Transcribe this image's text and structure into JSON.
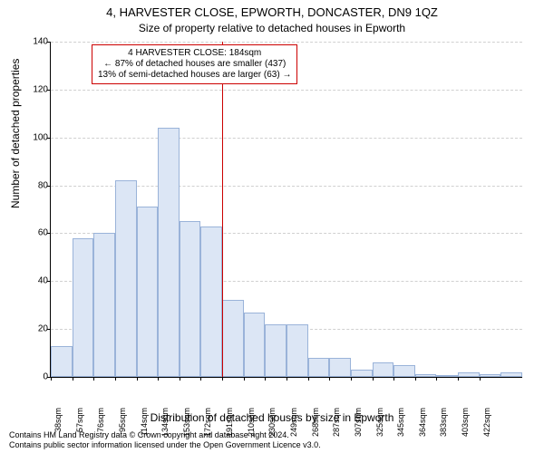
{
  "title": "4, HARVESTER CLOSE, EPWORTH, DONCASTER, DN9 1QZ",
  "subtitle": "Size of property relative to detached houses in Epworth",
  "chart": {
    "type": "histogram",
    "ylabel": "Number of detached properties",
    "xlabel": "Distribution of detached houses by size in Epworth",
    "ylim": [
      0,
      140
    ],
    "ytick_step": 20,
    "yticks": [
      0,
      20,
      40,
      60,
      80,
      100,
      120,
      140
    ],
    "xticks": [
      "38sqm",
      "57sqm",
      "76sqm",
      "95sqm",
      "114sqm",
      "134sqm",
      "153sqm",
      "172sqm",
      "191sqm",
      "210sqm",
      "230sqm",
      "249sqm",
      "268sqm",
      "287sqm",
      "307sqm",
      "325sqm",
      "345sqm",
      "364sqm",
      "383sqm",
      "403sqm",
      "422sqm"
    ],
    "values": [
      13,
      58,
      60,
      82,
      71,
      104,
      65,
      63,
      32,
      27,
      22,
      22,
      8,
      8,
      3,
      6,
      5,
      1,
      0,
      2,
      1,
      2
    ],
    "bar_fill": "#dce6f5",
    "bar_border": "#9ab3d9",
    "background_color": "#ffffff",
    "grid_color": "#d0d0d0",
    "marker": {
      "bin_after_index": 8,
      "color": "#cc0000",
      "callout": {
        "title": "4 HARVESTER CLOSE: 184sqm",
        "line1": "← 87% of detached houses are smaller (437)",
        "line2": "13% of semi-detached houses are larger (63) →"
      }
    }
  },
  "footer": {
    "line1": "Contains HM Land Registry data © Crown copyright and database right 2024.",
    "line2": "Contains public sector information licensed under the Open Government Licence v3.0."
  }
}
